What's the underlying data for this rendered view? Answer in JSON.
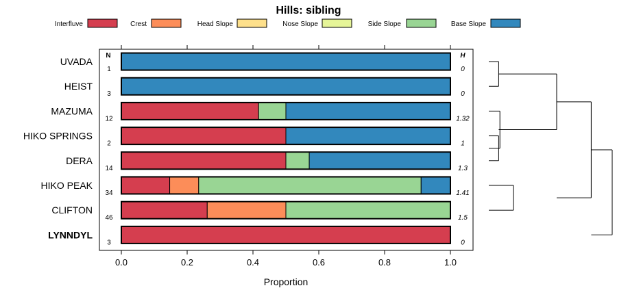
{
  "chart_data": {
    "type": "bar",
    "subtype": "stacked-horizontal-proportion",
    "title": "Hills: sibling",
    "xlabel": "Proportion",
    "xlim": [
      0,
      1
    ],
    "xticks": [
      0.0,
      0.2,
      0.4,
      0.6,
      0.8,
      1.0
    ],
    "xtick_labels": [
      "0.0",
      "0.2",
      "0.4",
      "0.6",
      "0.8",
      "1.0"
    ],
    "n_header": "N",
    "h_header": "H",
    "legend": [
      {
        "name": "Interfluve",
        "color": "#d53e4f"
      },
      {
        "name": "Crest",
        "color": "#fc8d59"
      },
      {
        "name": "Head Slope",
        "color": "#fee08b"
      },
      {
        "name": "Nose Slope",
        "color": "#e6f598"
      },
      {
        "name": "Side Slope",
        "color": "#99d594"
      },
      {
        "name": "Base Slope",
        "color": "#3288bd"
      }
    ],
    "rows": [
      {
        "label": "UVADA",
        "n": "1",
        "h": "0",
        "bold": false,
        "values": {
          "Interfluve": 0,
          "Crest": 0,
          "Head Slope": 0,
          "Nose Slope": 0,
          "Side Slope": 0,
          "Base Slope": 1.0
        }
      },
      {
        "label": "HEIST",
        "n": "3",
        "h": "0",
        "bold": false,
        "values": {
          "Interfluve": 0,
          "Crest": 0,
          "Head Slope": 0,
          "Nose Slope": 0,
          "Side Slope": 0,
          "Base Slope": 1.0
        }
      },
      {
        "label": "MAZUMA",
        "n": "12",
        "h": "1.32",
        "bold": false,
        "values": {
          "Interfluve": 0.417,
          "Crest": 0,
          "Head Slope": 0,
          "Nose Slope": 0,
          "Side Slope": 0.083,
          "Base Slope": 0.5
        }
      },
      {
        "label": "HIKO SPRINGS",
        "n": "2",
        "h": "1",
        "bold": false,
        "values": {
          "Interfluve": 0.5,
          "Crest": 0,
          "Head Slope": 0,
          "Nose Slope": 0,
          "Side Slope": 0,
          "Base Slope": 0.5
        }
      },
      {
        "label": "DERA",
        "n": "14",
        "h": "1.3",
        "bold": false,
        "values": {
          "Interfluve": 0.5,
          "Crest": 0,
          "Head Slope": 0,
          "Nose Slope": 0,
          "Side Slope": 0.071,
          "Base Slope": 0.429
        }
      },
      {
        "label": "HIKO PEAK",
        "n": "34",
        "h": "1.41",
        "bold": false,
        "values": {
          "Interfluve": 0.147,
          "Crest": 0.088,
          "Head Slope": 0,
          "Nose Slope": 0,
          "Side Slope": 0.676,
          "Base Slope": 0.089
        }
      },
      {
        "label": "CLIFTON",
        "n": "46",
        "h": "1.5",
        "bold": false,
        "values": {
          "Interfluve": 0.261,
          "Crest": 0.239,
          "Head Slope": 0,
          "Nose Slope": 0,
          "Side Slope": 0.5,
          "Base Slope": 0
        }
      },
      {
        "label": "LYNNDYL",
        "n": "3",
        "h": "0",
        "bold": true,
        "values": {
          "Interfluve": 1.0,
          "Crest": 0,
          "Head Slope": 0,
          "Nose Slope": 0,
          "Side Slope": 0,
          "Base Slope": 0
        }
      }
    ],
    "dendrogram": {
      "leaves": [
        "UVADA",
        "HEIST",
        "MAZUMA",
        "HIKO SPRINGS",
        "DERA",
        "HIKO PEAK",
        "CLIFTON",
        "LYNNDYL"
      ],
      "merges": [
        {
          "a": "UVADA",
          "b": "HEIST",
          "height": 0.08
        },
        {
          "a": "HIKO SPRINGS",
          "b": "DERA",
          "height": 0.08
        },
        {
          "a": "MAZUMA",
          "b": [
            "HIKO SPRINGS",
            "DERA"
          ],
          "height": 0.09
        },
        {
          "a": [
            "UVADA",
            "HEIST"
          ],
          "b": [
            "MAZUMA",
            "HIKO SPRINGS",
            "DERA"
          ],
          "height": 0.55
        },
        {
          "a": "HIKO PEAK",
          "b": "CLIFTON",
          "height": 0.2
        },
        {
          "a": [
            "UVADA",
            "HEIST",
            "MAZUMA",
            "HIKO SPRINGS",
            "DERA"
          ],
          "b": [
            "HIKO PEAK",
            "CLIFTON"
          ],
          "height": 0.83
        },
        {
          "a": "LYNNDYL",
          "b": "rest",
          "height": 1.0
        }
      ]
    }
  }
}
